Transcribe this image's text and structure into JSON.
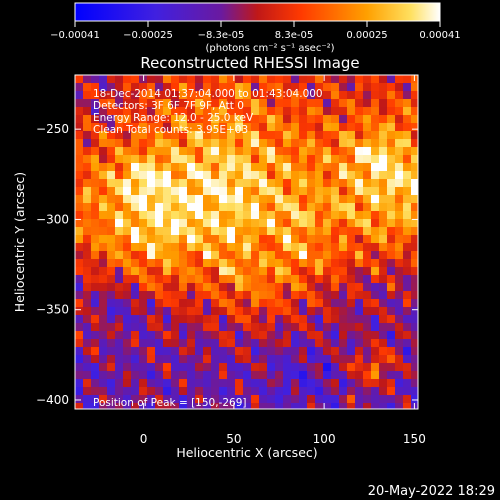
{
  "chart_data": {
    "type": "heatmap",
    "title": "Reconstructed RHESSI Image",
    "xlabel": "Heliocentric X (arcsec)",
    "ylabel": "Heliocentric Y (arcsec)",
    "xlim": [
      -38,
      152
    ],
    "ylim": [
      -405,
      -220
    ],
    "x_ticks": [
      0,
      50,
      100,
      150
    ],
    "y_ticks": [
      -250,
      -300,
      -350,
      -400
    ],
    "annotations": [
      "18-Dec-2014 01:37:04.000 to 01:43:04.000",
      "Detectors: 3F 6F 7F 9F, Att 0",
      "Energy Range: 12.0 - 25.0 keV",
      "Clean     Total counts: 3.95E+03"
    ],
    "peak_label": "Position of Peak = [150,-269]",
    "peak_position": [
      150,
      -269
    ],
    "colorbar": {
      "ticks": [
        "-0.00041",
        "-0.00025",
        "-8.3e-05",
        "8.3e-05",
        "0.00025",
        "0.00041"
      ],
      "range": [
        -0.00041,
        0.00041
      ],
      "unit_text": "(photons cm⁻² s⁻¹ asec⁻²)",
      "colors": [
        "#0000ff",
        "#6020c0",
        "#b01010",
        "#ff3000",
        "#ffa000",
        "#ffffff"
      ]
    },
    "grid": false,
    "colormap": "blue-white-red (RHESSI)"
  },
  "footer": {
    "date": "20-May-2022 18:29"
  }
}
